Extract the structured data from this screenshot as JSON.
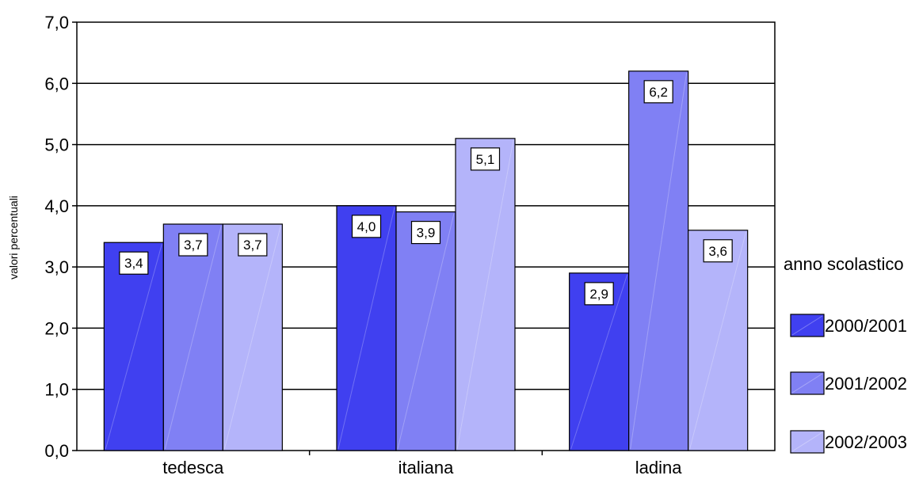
{
  "chart_data": {
    "type": "bar",
    "categories": [
      "tedesca",
      "italiana",
      "ladina"
    ],
    "series": [
      {
        "name": "2000/2001",
        "values": [
          3.4,
          4.0,
          2.9
        ],
        "labels": [
          "3,4",
          "4,0",
          "2,9"
        ],
        "color": "#4040f0"
      },
      {
        "name": "2001/2002",
        "values": [
          3.7,
          3.9,
          6.2
        ],
        "labels": [
          "3,7",
          "3,9",
          "6,2"
        ],
        "color": "#8080f4"
      },
      {
        "name": "2002/2003",
        "values": [
          3.7,
          5.1,
          3.6
        ],
        "labels": [
          "3,7",
          "5,1",
          "3,6"
        ],
        "color": "#b4b4fa"
      }
    ],
    "ylabel": "valori percentuali",
    "xlabel": "",
    "ylim": [
      0,
      7
    ],
    "yticks": [
      "0,0",
      "1,0",
      "2,0",
      "3,0",
      "4,0",
      "5,0",
      "6,0",
      "7,0"
    ],
    "grid": true,
    "legend_title": "anno scolastico",
    "legend_position": "right"
  }
}
